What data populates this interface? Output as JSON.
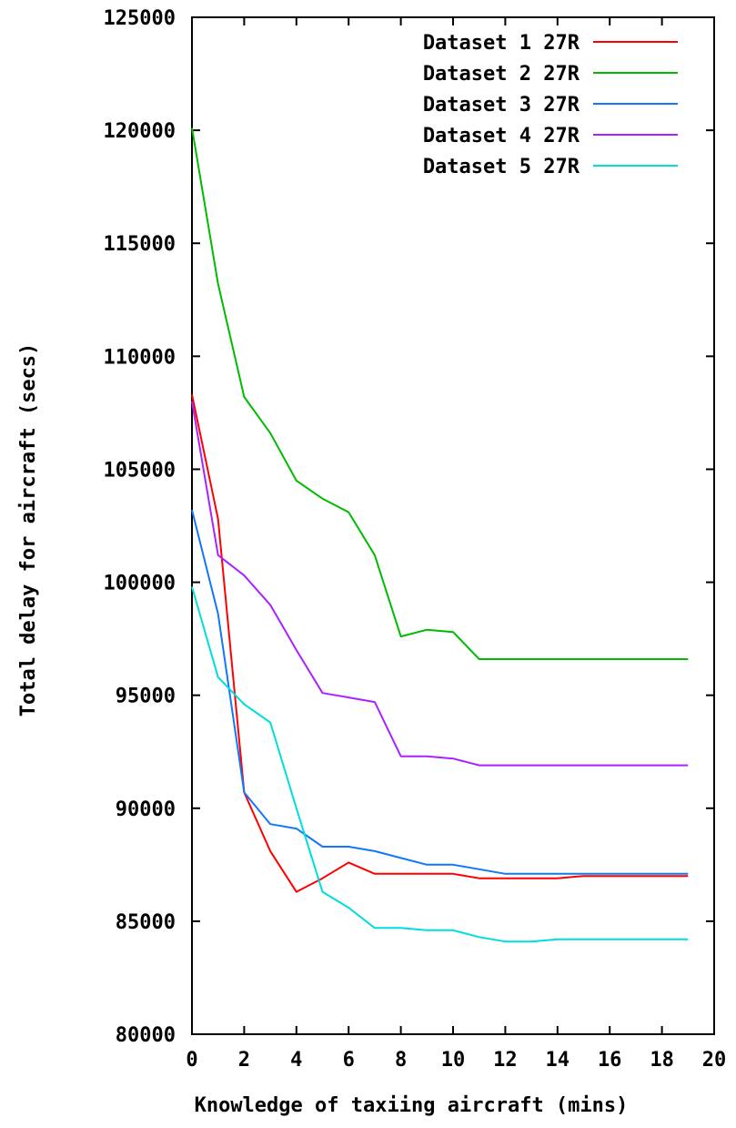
{
  "chart_data": {
    "type": "line",
    "xlabel": "Knowledge of taxiing aircraft (mins)",
    "ylabel": "Total delay for aircraft (secs)",
    "xlim": [
      0,
      20
    ],
    "ylim": [
      80000,
      125000
    ],
    "x_ticks": [
      0,
      2,
      4,
      6,
      8,
      10,
      12,
      14,
      16,
      18,
      20
    ],
    "y_ticks": [
      80000,
      85000,
      90000,
      95000,
      100000,
      105000,
      110000,
      115000,
      120000,
      125000
    ],
    "x_tick_labels": [
      "0",
      "2",
      "4",
      "6",
      "8",
      "10",
      "12",
      "14",
      "16",
      "18",
      "20"
    ],
    "y_tick_labels": [
      "80000",
      "85000",
      "90000",
      "95000",
      "100000",
      "105000",
      "110000",
      "115000",
      "120000",
      "125000"
    ],
    "grid": false,
    "legend_position": "top-right",
    "x": [
      0,
      1,
      2,
      3,
      4,
      5,
      6,
      7,
      8,
      9,
      10,
      11,
      12,
      13,
      14,
      15,
      16,
      17,
      18,
      19
    ],
    "series": [
      {
        "name": "Dataset 1 27R",
        "color": "#ff0000",
        "values": [
          108300,
          102800,
          90700,
          88100,
          86300,
          86900,
          87600,
          87100,
          87100,
          87100,
          87100,
          86900,
          86900,
          86900,
          86900,
          87000,
          87000,
          87000,
          87000,
          87000
        ]
      },
      {
        "name": "Dataset 2 27R",
        "color": "#00bb00",
        "values": [
          120100,
          113200,
          108200,
          106600,
          104500,
          103700,
          103100,
          101200,
          97600,
          97900,
          97800,
          96600,
          96600,
          96600,
          96600,
          96600,
          96600,
          96600,
          96600,
          96600
        ]
      },
      {
        "name": "Dataset 3 27R",
        "color": "#1177ff",
        "values": [
          103200,
          98600,
          90700,
          89300,
          89100,
          88300,
          88300,
          88100,
          87800,
          87500,
          87500,
          87300,
          87100,
          87100,
          87100,
          87100,
          87100,
          87100,
          87100,
          87100
        ]
      },
      {
        "name": "Dataset 4 27R",
        "color": "#aa22ff",
        "values": [
          108000,
          101200,
          100300,
          99000,
          97000,
          95100,
          94900,
          94700,
          92300,
          92300,
          92200,
          91900,
          91900,
          91900,
          91900,
          91900,
          91900,
          91900,
          91900,
          91900
        ]
      },
      {
        "name": "Dataset 5 27R",
        "color": "#00dddd",
        "values": [
          99800,
          95800,
          94600,
          93800,
          90000,
          86300,
          85600,
          84700,
          84700,
          84600,
          84600,
          84300,
          84100,
          84100,
          84200,
          84200,
          84200,
          84200,
          84200,
          84200
        ]
      }
    ]
  }
}
